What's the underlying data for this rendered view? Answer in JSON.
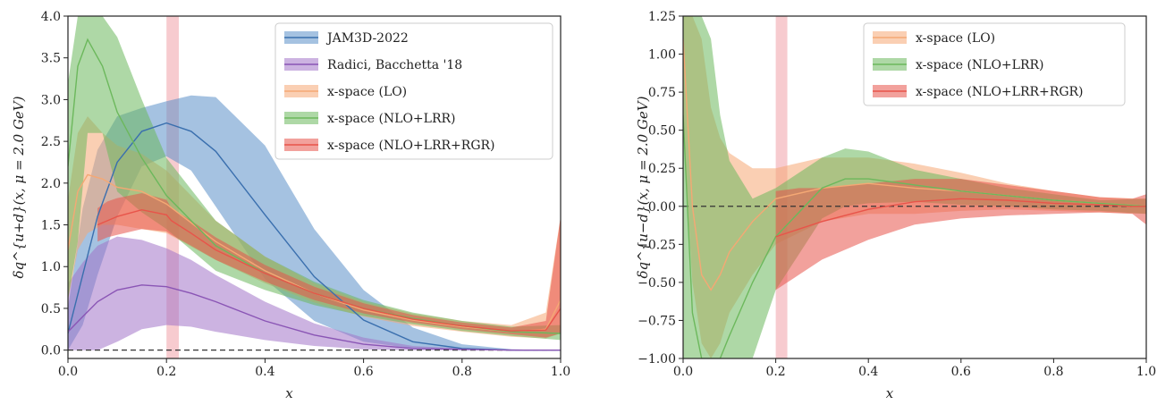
{
  "chart_data": [
    {
      "type": "line",
      "xlabel": "x",
      "ylabel": "δq^{u+d}(x, μ = 2.0 GeV)",
      "xlim": [
        0.0,
        1.0
      ],
      "ylim": [
        -0.1,
        4.0
      ],
      "xticks": [
        "0.0",
        "0.2",
        "0.4",
        "0.6",
        "0.8",
        "1.0"
      ],
      "yticks": [
        "0.0",
        "0.5",
        "1.0",
        "1.5",
        "2.0",
        "2.5",
        "3.0",
        "3.5",
        "4.0"
      ],
      "legend_position": "top-right",
      "vline": [
        0.2,
        0.225
      ],
      "series": [
        {
          "name": "JAM3D-2022",
          "color": "#5b8fc9",
          "x": [
            0.0,
            0.03,
            0.06,
            0.1,
            0.15,
            0.2,
            0.25,
            0.3,
            0.4,
            0.5,
            0.6,
            0.7,
            0.8,
            0.9,
            1.0
          ],
          "y": [
            0.2,
            0.9,
            1.6,
            2.25,
            2.62,
            2.72,
            2.62,
            2.38,
            1.62,
            0.88,
            0.36,
            0.1,
            0.02,
            0.0,
            0.0
          ],
          "upper": [
            0.5,
            1.7,
            2.4,
            2.8,
            2.9,
            2.98,
            3.05,
            3.03,
            2.45,
            1.45,
            0.72,
            0.27,
            0.07,
            0.01,
            0.0
          ],
          "lower": [
            0.0,
            0.3,
            0.9,
            1.6,
            2.2,
            2.32,
            2.15,
            1.72,
            0.85,
            0.35,
            0.1,
            0.02,
            0.0,
            0.0,
            0.0
          ]
        },
        {
          "name": "Radici, Bacchetta '18",
          "color": "#a274c9",
          "x": [
            0.0,
            0.03,
            0.06,
            0.1,
            0.15,
            0.2,
            0.25,
            0.3,
            0.4,
            0.5,
            0.6,
            0.7,
            0.8,
            0.9,
            1.0
          ],
          "y": [
            0.22,
            0.4,
            0.58,
            0.72,
            0.78,
            0.76,
            0.68,
            0.58,
            0.35,
            0.18,
            0.07,
            0.02,
            0.01,
            0.0,
            0.0
          ],
          "upper": [
            0.8,
            1.05,
            1.25,
            1.36,
            1.32,
            1.22,
            1.08,
            0.9,
            0.58,
            0.32,
            0.15,
            0.05,
            0.02,
            0.01,
            0.0
          ],
          "lower": [
            0.0,
            0.0,
            0.0,
            0.1,
            0.25,
            0.3,
            0.28,
            0.22,
            0.12,
            0.05,
            0.01,
            0.0,
            0.0,
            0.0,
            0.0
          ]
        },
        {
          "name": "x-space (LO)",
          "color": "#f5a874",
          "x": [
            0.0,
            0.02,
            0.04,
            0.07,
            0.1,
            0.15,
            0.2,
            0.3,
            0.4,
            0.5,
            0.6,
            0.7,
            0.8,
            0.9,
            0.97,
            1.0
          ],
          "y": [
            1.2,
            1.9,
            2.1,
            2.05,
            1.95,
            1.9,
            1.75,
            1.3,
            0.95,
            0.68,
            0.48,
            0.36,
            0.28,
            0.22,
            0.25,
            0.6
          ],
          "upper": [
            1.8,
            2.6,
            2.8,
            2.6,
            2.45,
            2.35,
            2.15,
            1.55,
            1.12,
            0.8,
            0.58,
            0.44,
            0.35,
            0.3,
            0.45,
            1.6
          ],
          "lower": [
            0.6,
            1.2,
            1.4,
            1.5,
            1.5,
            1.45,
            1.4,
            1.08,
            0.8,
            0.57,
            0.4,
            0.29,
            0.22,
            0.16,
            0.14,
            0.2
          ]
        },
        {
          "name": "x-space (NLO+LRR)",
          "color": "#6cb85c",
          "x": [
            0.0,
            0.02,
            0.04,
            0.07,
            0.1,
            0.15,
            0.2,
            0.3,
            0.4,
            0.5,
            0.6,
            0.7,
            0.8,
            0.9,
            1.0
          ],
          "y": [
            2.2,
            3.4,
            3.72,
            3.4,
            2.85,
            2.3,
            1.85,
            1.25,
            0.92,
            0.68,
            0.5,
            0.38,
            0.29,
            0.22,
            0.2
          ],
          "upper": [
            3.2,
            4.0,
            4.0,
            4.0,
            3.75,
            3.0,
            2.3,
            1.55,
            1.12,
            0.82,
            0.6,
            0.45,
            0.35,
            0.28,
            0.3
          ],
          "lower": [
            0.6,
            1.3,
            2.6,
            2.6,
            1.9,
            1.65,
            1.45,
            0.95,
            0.72,
            0.54,
            0.41,
            0.31,
            0.23,
            0.17,
            0.12
          ]
        },
        {
          "name": "x-space (NLO+LRR+RGR)",
          "color": "#e8544a",
          "x": [
            0.06,
            0.08,
            0.1,
            0.15,
            0.2,
            0.21,
            0.25,
            0.3,
            0.4,
            0.5,
            0.6,
            0.7,
            0.8,
            0.9,
            0.97,
            1.0
          ],
          "y": [
            1.5,
            1.55,
            1.6,
            1.68,
            1.62,
            1.55,
            1.4,
            1.2,
            0.92,
            0.68,
            0.5,
            0.37,
            0.29,
            0.23,
            0.24,
            0.5
          ],
          "upper": [
            1.7,
            1.78,
            1.82,
            1.88,
            1.8,
            1.7,
            1.55,
            1.35,
            1.02,
            0.76,
            0.56,
            0.42,
            0.33,
            0.27,
            0.35,
            1.6
          ],
          "lower": [
            1.3,
            1.35,
            1.38,
            1.45,
            1.42,
            1.38,
            1.25,
            1.08,
            0.82,
            0.6,
            0.44,
            0.33,
            0.25,
            0.19,
            0.15,
            0.2
          ]
        }
      ]
    },
    {
      "type": "line",
      "xlabel": "x",
      "ylabel": "δq^{u−d}(x, μ = 2.0 GeV)",
      "xlim": [
        0.0,
        1.0
      ],
      "ylim": [
        -1.0,
        1.25
      ],
      "xticks": [
        "0.0",
        "0.2",
        "0.4",
        "0.6",
        "0.8",
        "1.0"
      ],
      "yticks": [
        "−1.00",
        "−0.75",
        "−0.50",
        "−0.25",
        "0.00",
        "0.25",
        "0.50",
        "0.75",
        "1.00",
        "1.25"
      ],
      "legend_position": "top-right",
      "vline": [
        0.2,
        0.225
      ],
      "series": [
        {
          "name": "x-space (LO)",
          "color": "#f5a874",
          "x": [
            0.0,
            0.02,
            0.04,
            0.06,
            0.08,
            0.1,
            0.15,
            0.2,
            0.3,
            0.4,
            0.5,
            0.6,
            0.7,
            0.8,
            0.9,
            1.0
          ],
          "y": [
            1.1,
            0.0,
            -0.45,
            -0.55,
            -0.45,
            -0.3,
            -0.1,
            0.05,
            0.12,
            0.15,
            0.12,
            0.1,
            0.07,
            0.04,
            0.02,
            0.0
          ],
          "upper": [
            1.25,
            1.25,
            1.1,
            0.65,
            0.45,
            0.35,
            0.25,
            0.25,
            0.32,
            0.32,
            0.28,
            0.22,
            0.15,
            0.1,
            0.06,
            0.05
          ],
          "lower": [
            0.5,
            -0.5,
            -0.9,
            -1.0,
            -0.9,
            -0.7,
            -0.45,
            -0.25,
            -0.1,
            -0.05,
            -0.05,
            -0.03,
            -0.02,
            -0.03,
            -0.04,
            -0.05
          ]
        },
        {
          "name": "x-space (NLO+LRR)",
          "color": "#6cb85c",
          "x": [
            0.0,
            0.02,
            0.04,
            0.06,
            0.08,
            0.1,
            0.15,
            0.2,
            0.3,
            0.35,
            0.4,
            0.5,
            0.6,
            0.7,
            0.8,
            0.9,
            1.0
          ],
          "y": [
            0.6,
            -0.7,
            -1.0,
            -1.0,
            -1.0,
            -0.85,
            -0.5,
            -0.2,
            0.12,
            0.18,
            0.18,
            0.14,
            0.1,
            0.07,
            0.04,
            0.02,
            0.0
          ],
          "upper": [
            1.25,
            1.25,
            1.25,
            1.1,
            0.6,
            0.3,
            0.05,
            0.12,
            0.32,
            0.38,
            0.36,
            0.24,
            0.18,
            0.12,
            0.08,
            0.04,
            0.05
          ],
          "lower": [
            -1.0,
            -1.0,
            -1.0,
            -1.0,
            -1.0,
            -1.0,
            -1.0,
            -0.55,
            -0.08,
            0.0,
            0.02,
            0.03,
            0.01,
            0.0,
            -0.02,
            -0.03,
            -0.05
          ]
        },
        {
          "name": "x-space (NLO+LRR+RGR)",
          "color": "#e8544a",
          "x": [
            0.2,
            0.25,
            0.3,
            0.4,
            0.5,
            0.6,
            0.7,
            0.8,
            0.9,
            0.97,
            1.0
          ],
          "y": [
            -0.2,
            -0.15,
            -0.1,
            -0.02,
            0.03,
            0.05,
            0.04,
            0.02,
            0.01,
            0.0,
            0.0
          ],
          "upper": [
            0.1,
            0.12,
            0.12,
            0.15,
            0.18,
            0.18,
            0.14,
            0.1,
            0.06,
            0.05,
            0.08
          ],
          "lower": [
            -0.55,
            -0.45,
            -0.35,
            -0.22,
            -0.12,
            -0.08,
            -0.06,
            -0.05,
            -0.04,
            -0.05,
            -0.12
          ]
        }
      ]
    }
  ]
}
